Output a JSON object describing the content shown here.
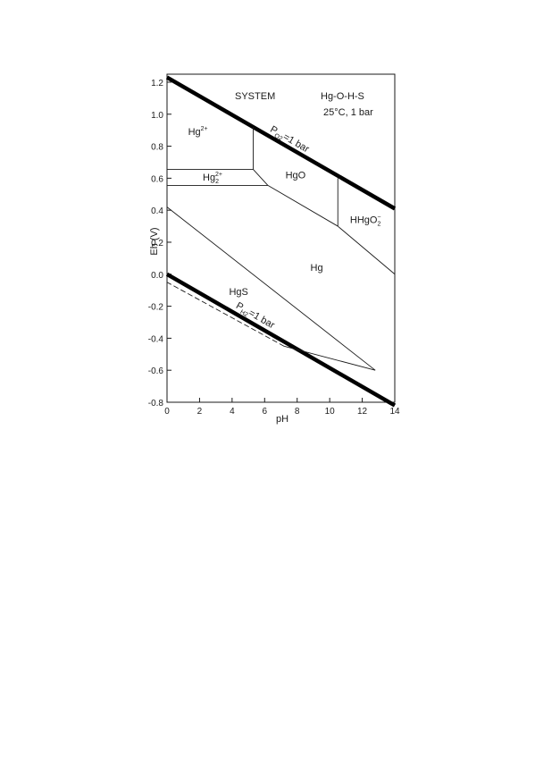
{
  "chart_data": {
    "type": "line",
    "title": "",
    "system_label": "SYSTEM",
    "system_name": "Hg-O-H-S",
    "conditions": "25°C, 1 bar",
    "xlabel": "pH",
    "ylabel": "Eh (V)",
    "xlim": [
      0,
      14
    ],
    "ylim": [
      -0.8,
      1.25
    ],
    "xticks": [
      0,
      2,
      4,
      6,
      8,
      10,
      12,
      14
    ],
    "yticks": [
      -0.8,
      -0.6,
      -0.4,
      -0.2,
      0.0,
      0.2,
      0.4,
      0.6,
      0.8,
      1.0,
      1.2
    ],
    "ytick_labels": [
      "-0.8",
      "-0.6",
      "-0.4",
      "-0.2",
      "0.0",
      "0.2",
      "0.4",
      "0.6",
      "0.8",
      "1.0",
      "1.2"
    ],
    "grid": false,
    "water_limits": [
      {
        "label_base": "P",
        "label_sub": "O2",
        "label_tail": "=1 bar",
        "x": [
          0,
          14
        ],
        "y": [
          1.23,
          0.41
        ]
      },
      {
        "label_base": "P",
        "label_sub": "H2",
        "label_tail": "=1 bar",
        "x": [
          0,
          14
        ],
        "y": [
          0.0,
          -0.82
        ]
      }
    ],
    "boundaries": [
      {
        "x": [
          0,
          5.3
        ],
        "y": [
          0.655,
          0.655
        ]
      },
      {
        "x": [
          0,
          6.2
        ],
        "y": [
          0.555,
          0.555
        ]
      },
      {
        "x": [
          5.3,
          5.3
        ],
        "y": [
          0.92,
          0.655
        ]
      },
      {
        "x": [
          5.3,
          6.2
        ],
        "y": [
          0.655,
          0.555
        ]
      },
      {
        "x": [
          6.2,
          10.5
        ],
        "y": [
          0.555,
          0.3
        ]
      },
      {
        "x": [
          10.5,
          10.5
        ],
        "y": [
          0.6,
          0.3
        ]
      },
      {
        "x": [
          10.5,
          14
        ],
        "y": [
          0.3,
          0.0
        ]
      },
      {
        "x": [
          0,
          12.8
        ],
        "y": [
          0.42,
          -0.6
        ]
      },
      {
        "x": [
          12.8,
          7.2
        ],
        "y": [
          -0.6,
          -0.45
        ]
      },
      {
        "x": [
          7.2,
          0
        ],
        "y": [
          -0.45,
          -0.05
        ],
        "dashed": true
      }
    ],
    "regions": [
      {
        "base": "Hg",
        "sup": "2+",
        "x": 1.9,
        "y": 0.87
      },
      {
        "base": "Hg",
        "sub": "2",
        "sup": "2+",
        "x": 2.8,
        "y": 0.585
      },
      {
        "base": "HgO",
        "x": 7.9,
        "y": 0.6
      },
      {
        "base": "HHgO",
        "sub": "2",
        "sup": "−",
        "x": 12.2,
        "y": 0.32
      },
      {
        "base": "Hg",
        "x": 9.2,
        "y": 0.02
      },
      {
        "base": "HgS",
        "x": 4.4,
        "y": -0.13
      }
    ]
  }
}
